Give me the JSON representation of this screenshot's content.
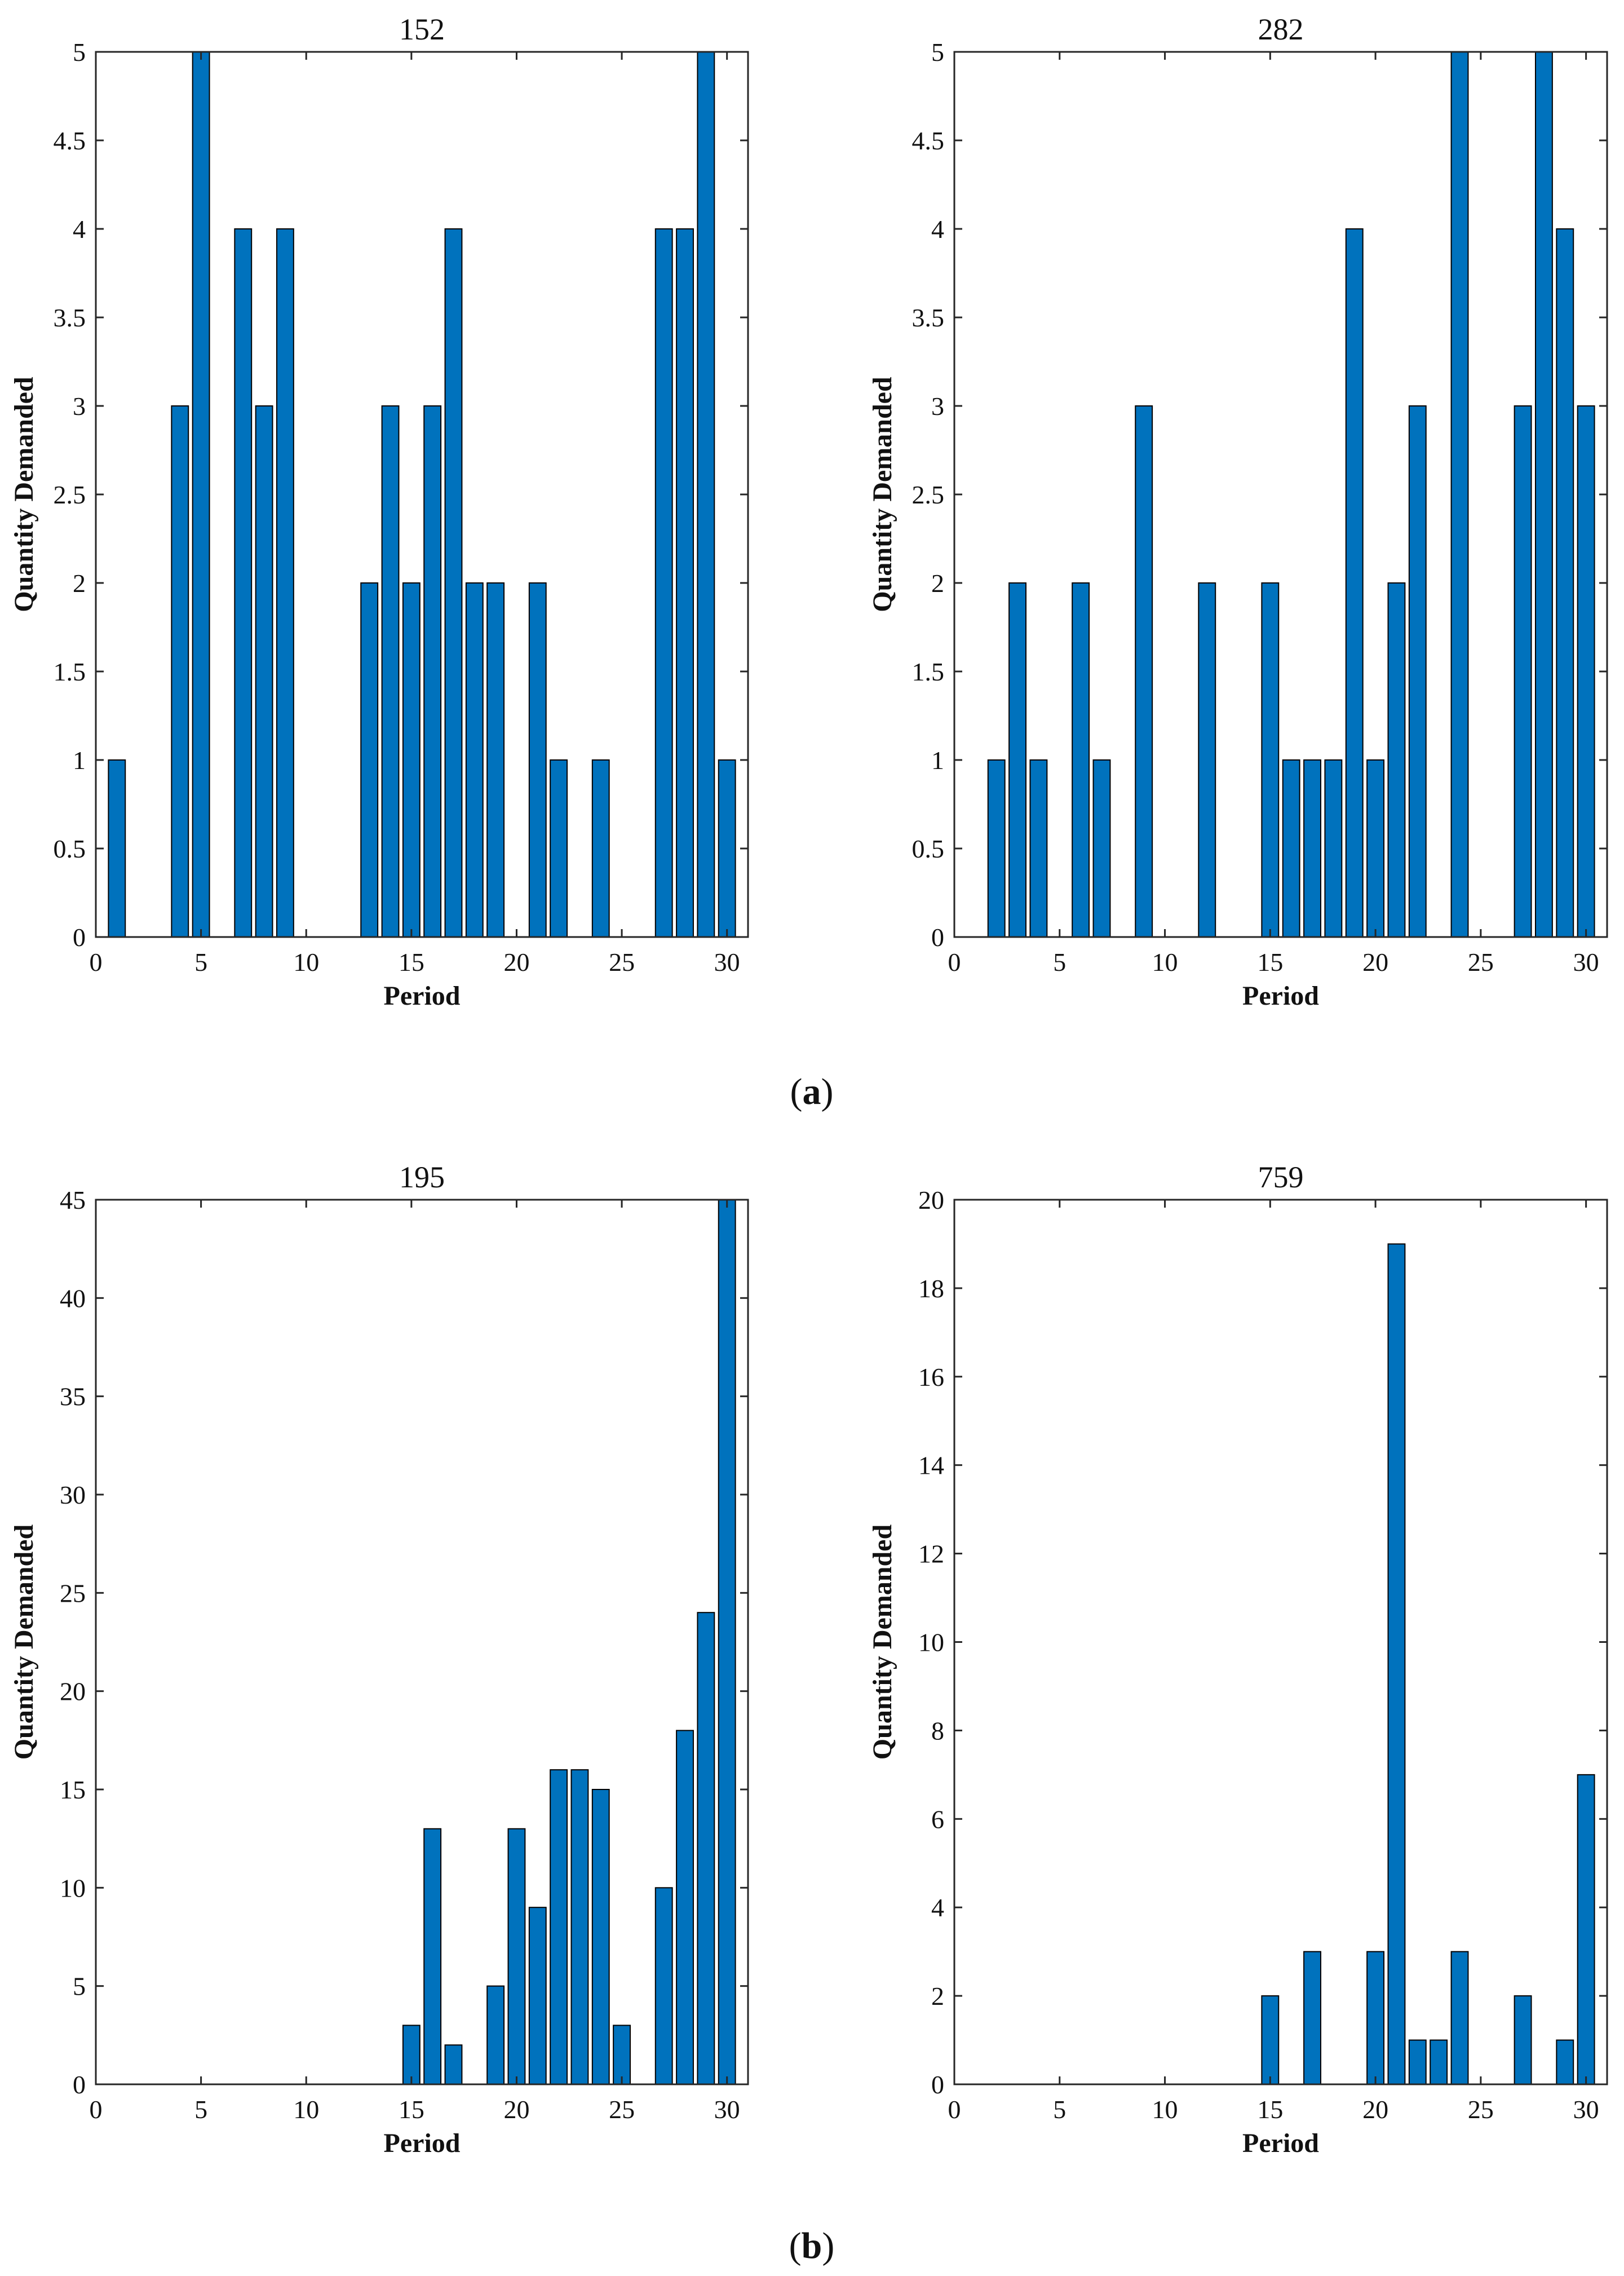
{
  "bar_color": "#0072BD",
  "panel_labels": [
    {
      "open": "(",
      "letter": "a",
      "close": ")"
    },
    {
      "open": "(",
      "letter": "b",
      "close": ")"
    }
  ],
  "chart_data": [
    {
      "type": "bar",
      "title": "152",
      "xlabel": "Period",
      "ylabel": "Quantity Demanded",
      "xlim": [
        0,
        31
      ],
      "ylim": [
        0,
        5
      ],
      "xticks": [
        0,
        5,
        10,
        15,
        20,
        25,
        30
      ],
      "yticks": [
        0,
        0.5,
        1,
        1.5,
        2,
        2.5,
        3,
        3.5,
        4,
        4.5,
        5
      ],
      "x": [
        1,
        2,
        3,
        4,
        5,
        6,
        7,
        8,
        9,
        10,
        11,
        12,
        13,
        14,
        15,
        16,
        17,
        18,
        19,
        20,
        21,
        22,
        23,
        24,
        25,
        26,
        27,
        28,
        29,
        30
      ],
      "values": [
        1,
        0,
        0,
        3,
        5,
        0,
        4,
        3,
        4,
        0,
        0,
        0,
        2,
        3,
        2,
        3,
        4,
        2,
        2,
        0,
        2,
        1,
        0,
        1,
        0,
        0,
        4,
        4,
        5,
        1
      ]
    },
    {
      "type": "bar",
      "title": "282",
      "xlabel": "Period",
      "ylabel": "Quantity Demanded",
      "xlim": [
        0,
        31
      ],
      "ylim": [
        0,
        5
      ],
      "xticks": [
        0,
        5,
        10,
        15,
        20,
        25,
        30
      ],
      "yticks": [
        0,
        0.5,
        1,
        1.5,
        2,
        2.5,
        3,
        3.5,
        4,
        4.5,
        5
      ],
      "x": [
        1,
        2,
        3,
        4,
        5,
        6,
        7,
        8,
        9,
        10,
        11,
        12,
        13,
        14,
        15,
        16,
        17,
        18,
        19,
        20,
        21,
        22,
        23,
        24,
        25,
        26,
        27,
        28,
        29,
        30
      ],
      "values": [
        0,
        1,
        2,
        1,
        0,
        2,
        1,
        0,
        3,
        0,
        0,
        2,
        0,
        0,
        2,
        1,
        1,
        1,
        4,
        1,
        2,
        3,
        0,
        5,
        0,
        0,
        3,
        5,
        4,
        3
      ]
    },
    {
      "type": "bar",
      "title": "195",
      "xlabel": "Period",
      "ylabel": "Quantity Demanded",
      "xlim": [
        0,
        31
      ],
      "ylim": [
        0,
        45
      ],
      "xticks": [
        0,
        5,
        10,
        15,
        20,
        25,
        30
      ],
      "yticks": [
        0,
        5,
        10,
        15,
        20,
        25,
        30,
        35,
        40,
        45
      ],
      "x": [
        1,
        2,
        3,
        4,
        5,
        6,
        7,
        8,
        9,
        10,
        11,
        12,
        13,
        14,
        15,
        16,
        17,
        18,
        19,
        20,
        21,
        22,
        23,
        24,
        25,
        26,
        27,
        28,
        29,
        30
      ],
      "values": [
        0,
        0,
        0,
        0,
        0,
        0,
        0,
        0,
        0,
        0,
        0,
        0,
        0,
        0,
        3,
        13,
        2,
        0,
        5,
        13,
        9,
        16,
        16,
        15,
        3,
        0,
        10,
        18,
        24,
        45
      ]
    },
    {
      "type": "bar",
      "title": "759",
      "xlabel": "Period",
      "ylabel": "Quantity Demanded",
      "xlim": [
        0,
        31
      ],
      "ylim": [
        0,
        20
      ],
      "xticks": [
        0,
        5,
        10,
        15,
        20,
        25,
        30
      ],
      "yticks": [
        0,
        2,
        4,
        6,
        8,
        10,
        12,
        14,
        16,
        18,
        20
      ],
      "x": [
        1,
        2,
        3,
        4,
        5,
        6,
        7,
        8,
        9,
        10,
        11,
        12,
        13,
        14,
        15,
        16,
        17,
        18,
        19,
        20,
        21,
        22,
        23,
        24,
        25,
        26,
        27,
        28,
        29,
        30
      ],
      "values": [
        0,
        0,
        0,
        0,
        0,
        0,
        0,
        0,
        0,
        0,
        0,
        0,
        0,
        0,
        2,
        0,
        3,
        0,
        0,
        3,
        19,
        1,
        1,
        3,
        0,
        0,
        2,
        0,
        1,
        7
      ]
    }
  ]
}
